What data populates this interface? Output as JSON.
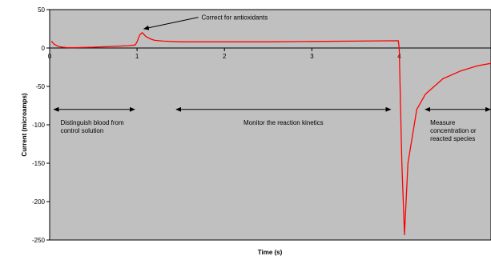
{
  "chart_data": {
    "type": "line",
    "title": "",
    "xlabel": "Time (s)",
    "ylabel": "Current (microamps)",
    "xlim": [
      0,
      5.05
    ],
    "ylim": [
      -250,
      50
    ],
    "grid": "none",
    "legend": "none",
    "colors": {
      "plot_background": "#c0c0c0",
      "series": "#ff0000",
      "frame": "#000000",
      "arrows": "#000000"
    },
    "x_ticks": [
      "0",
      "1",
      "2",
      "3",
      "4"
    ],
    "x_tick_values": [
      0,
      1,
      2,
      3,
      4
    ],
    "y_ticks": [
      "50",
      "0",
      "-50",
      "-100",
      "-150",
      "-200",
      "-250"
    ],
    "y_tick_values": [
      50,
      0,
      -50,
      -100,
      -150,
      -200,
      -250
    ],
    "series": [
      {
        "x": [
          0.02,
          0.05,
          0.1,
          0.15,
          0.2,
          0.3,
          0.5,
          0.7,
          0.9,
          0.98,
          1.0,
          1.03,
          1.06,
          1.1,
          1.15,
          1.2,
          1.3,
          1.5,
          2.0,
          2.5,
          3.0,
          3.5,
          3.99,
          4.0,
          4.03,
          4.06,
          4.1,
          4.2,
          4.3,
          4.5,
          4.7,
          4.9,
          5.05
        ],
        "values": [
          9,
          5,
          2,
          1,
          0.5,
          0.5,
          1,
          2,
          3,
          4,
          8,
          17,
          20,
          15,
          12,
          10,
          9,
          8,
          8,
          8,
          8.5,
          9,
          9.5,
          0,
          -150,
          -243,
          -150,
          -80,
          -60,
          -40,
          -30,
          -23,
          -20
        ]
      }
    ],
    "annotations": [
      {
        "text": "Correct for antioxidants",
        "type": "arrow",
        "x_from": 1.7,
        "y_from": 40,
        "x_to": 1.08,
        "y_to": 25
      },
      {
        "text": "Distinguish blood from control solution",
        "lines": [
          "Distinguish blood from",
          "control solution"
        ],
        "type": "double-arrow",
        "x_start": 0.05,
        "x_end": 0.97,
        "y": -80
      },
      {
        "text": "Monitor the reaction kinetics",
        "lines": [
          "Monitor the reaction kinetics"
        ],
        "type": "double-arrow",
        "x_start": 1.45,
        "x_end": 3.9,
        "y": -80
      },
      {
        "text": "Measure concentration or reacted species",
        "lines": [
          "Measure",
          "concentration or",
          "reacted species"
        ],
        "type": "double-arrow",
        "x_start": 4.3,
        "x_end": 5.05,
        "y": -80
      }
    ]
  }
}
